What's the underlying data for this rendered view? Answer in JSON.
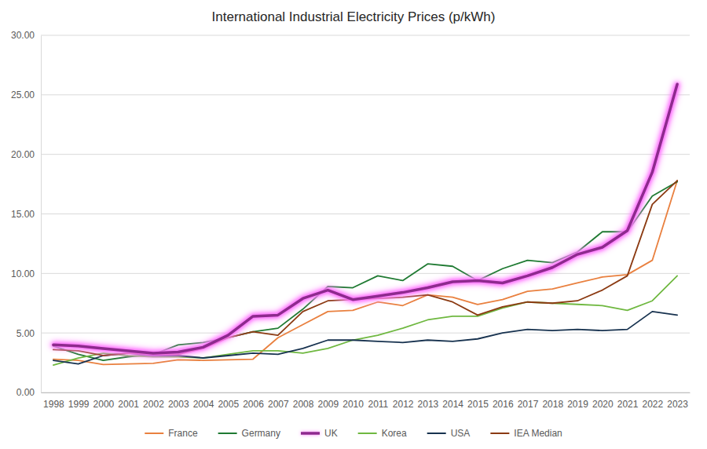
{
  "chart_data": {
    "type": "line",
    "title": "International Industrial Electricity Prices (p/kWh)",
    "categories": [
      "1998",
      "1999",
      "2000",
      "2001",
      "2002",
      "2003",
      "2004",
      "2005",
      "2006",
      "2007",
      "2008",
      "2009",
      "2010",
      "2011",
      "2012",
      "2013",
      "2014",
      "2015",
      "2016",
      "2017",
      "2018",
      "2019",
      "2020",
      "2021",
      "2022",
      "2023"
    ],
    "series": [
      {
        "name": "France",
        "color": "#e9803f",
        "line_style": "solid",
        "values": [
          2.8,
          2.7,
          2.35,
          2.4,
          2.45,
          2.75,
          2.7,
          2.75,
          2.8,
          4.6,
          5.7,
          6.8,
          6.9,
          7.6,
          7.3,
          8.2,
          8.0,
          7.4,
          7.8,
          8.5,
          8.7,
          9.2,
          9.7,
          9.9,
          11.1,
          17.8
        ]
      },
      {
        "name": "Germany",
        "color": "#1f7a32",
        "line_style": "solid",
        "values": [
          3.9,
          3.2,
          2.7,
          3.0,
          3.2,
          4.0,
          4.2,
          4.6,
          5.1,
          5.4,
          7.0,
          8.9,
          8.8,
          9.8,
          9.4,
          10.8,
          10.6,
          9.4,
          10.4,
          11.1,
          10.9,
          11.8,
          13.5,
          13.5,
          16.5,
          17.7
        ]
      },
      {
        "name": "UK",
        "color": "#8e2a8e",
        "line_style": "highlighted",
        "values": [
          4.0,
          3.9,
          3.7,
          3.5,
          3.3,
          3.4,
          3.8,
          4.8,
          6.4,
          6.5,
          7.9,
          8.6,
          7.8,
          8.1,
          8.4,
          8.8,
          9.3,
          9.4,
          9.2,
          9.8,
          10.5,
          11.6,
          12.2,
          13.6,
          18.5,
          25.9
        ]
      },
      {
        "name": "Korea",
        "color": "#6fb840",
        "line_style": "solid",
        "values": [
          2.3,
          2.9,
          3.3,
          3.1,
          3.0,
          3.0,
          2.9,
          3.2,
          3.5,
          3.5,
          3.3,
          3.7,
          4.4,
          4.8,
          5.4,
          6.1,
          6.4,
          6.4,
          7.1,
          7.6,
          7.5,
          7.4,
          7.3,
          6.9,
          7.7,
          9.8
        ]
      },
      {
        "name": "USA",
        "color": "#17324f",
        "line_style": "solid",
        "values": [
          2.7,
          2.4,
          3.1,
          3.3,
          3.1,
          3.1,
          2.9,
          3.1,
          3.3,
          3.2,
          3.7,
          4.4,
          4.4,
          4.3,
          4.2,
          4.4,
          4.3,
          4.5,
          5.0,
          5.3,
          5.2,
          5.3,
          5.2,
          5.3,
          6.8,
          6.5
        ]
      },
      {
        "name": "IEA Median",
        "color": "#8b3a12",
        "line_style": "solid",
        "values": [
          3.6,
          3.5,
          3.1,
          3.3,
          3.2,
          3.2,
          3.7,
          4.6,
          5.1,
          4.8,
          6.8,
          7.7,
          7.8,
          7.9,
          8.0,
          8.2,
          7.6,
          6.5,
          7.2,
          7.6,
          7.5,
          7.7,
          8.6,
          9.8,
          15.8,
          17.8
        ]
      }
    ],
    "ylim": [
      0,
      30
    ],
    "yticks": [
      {
        "value": 0,
        "label": "0.00"
      },
      {
        "value": 5,
        "label": "5.00"
      },
      {
        "value": 10,
        "label": "10.00"
      },
      {
        "value": 15,
        "label": "15.00"
      },
      {
        "value": 20,
        "label": "20.00"
      },
      {
        "value": 25,
        "label": "25.00"
      },
      {
        "value": 30,
        "label": "30.00"
      }
    ],
    "grid": true,
    "legend": "bottom"
  }
}
